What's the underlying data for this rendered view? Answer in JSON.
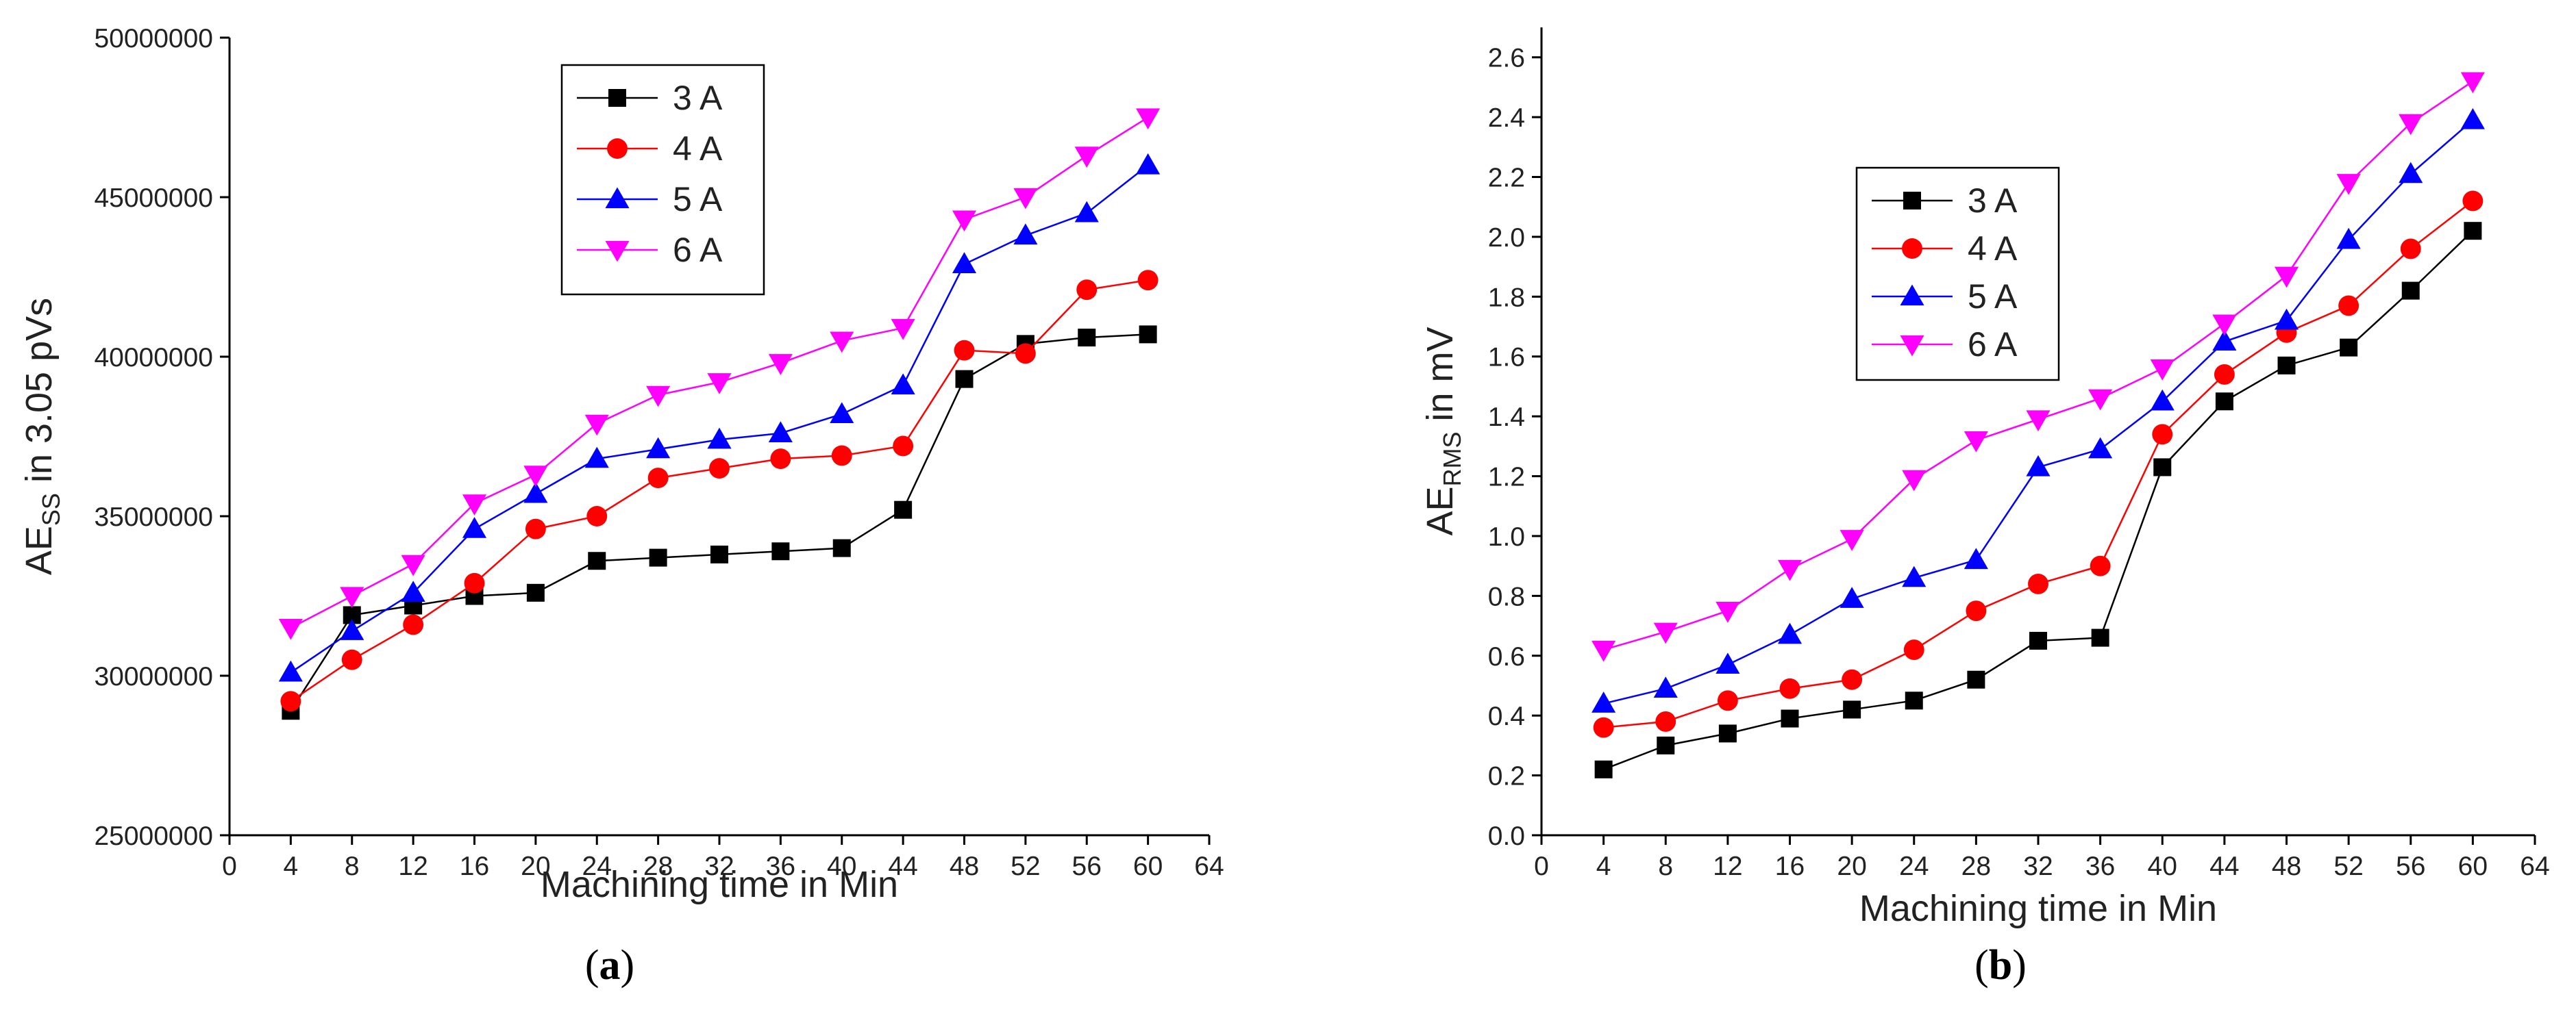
{
  "chart_data": [
    {
      "type": "line",
      "panel": "a",
      "caption_letter": "a",
      "xlabel": "Machining time in Min",
      "ylabel_main": "AE",
      "ylabel_sub": "SS",
      "ylabel_rest": " in 3.05 pVs",
      "xlim": [
        0,
        64
      ],
      "ylim": [
        25000000,
        50000000
      ],
      "xticks": [
        "0",
        "4",
        "8",
        "12",
        "16",
        "20",
        "24",
        "28",
        "32",
        "36",
        "40",
        "44",
        "48",
        "52",
        "56",
        "60",
        "64"
      ],
      "yticks": [
        "25000000",
        "30000000",
        "35000000",
        "40000000",
        "45000000",
        "50000000"
      ],
      "legend_position": "top-center",
      "x": [
        4,
        8,
        12,
        16,
        20,
        24,
        28,
        32,
        36,
        40,
        44,
        48,
        52,
        56,
        60
      ],
      "series": [
        {
          "name": "3 A",
          "color": "#000000",
          "marker": "square",
          "values": [
            28900000,
            31900000,
            32200000,
            32500000,
            32600000,
            33600000,
            33700000,
            33800000,
            33900000,
            34000000,
            35200000,
            39300000,
            40400000,
            40600000,
            40700000
          ]
        },
        {
          "name": "4 A",
          "color": "#ff0000",
          "marker": "circle",
          "values": [
            29200000,
            30500000,
            31600000,
            32900000,
            34600000,
            35000000,
            36200000,
            36500000,
            36800000,
            36900000,
            37200000,
            40200000,
            40100000,
            42100000,
            42400000
          ]
        },
        {
          "name": "5 A",
          "color": "#0000ff",
          "marker": "triangle-up",
          "values": [
            30100000,
            31400000,
            32600000,
            34600000,
            35700000,
            36800000,
            37100000,
            37400000,
            37600000,
            38200000,
            39100000,
            42900000,
            43800000,
            44500000,
            46000000
          ]
        },
        {
          "name": "6 A",
          "color": "#ff00ff",
          "marker": "triangle-down",
          "values": [
            31500000,
            32500000,
            33500000,
            35400000,
            36300000,
            37900000,
            38800000,
            39200000,
            39800000,
            40500000,
            40900000,
            44300000,
            45000000,
            46300000,
            47500000
          ]
        }
      ]
    },
    {
      "type": "line",
      "panel": "b",
      "caption_letter": "b",
      "xlabel": "Machining time in Min",
      "ylabel_main": "AE",
      "ylabel_sub": "RMS",
      "ylabel_rest": " in mV",
      "xlim": [
        0,
        64
      ],
      "ylim": [
        0,
        2.7
      ],
      "xticks": [
        "0",
        "4",
        "8",
        "12",
        "16",
        "20",
        "24",
        "28",
        "32",
        "36",
        "40",
        "44",
        "48",
        "52",
        "56",
        "60",
        "64"
      ],
      "yticks": [
        "0.0",
        "0.2",
        "0.4",
        "0.6",
        "0.8",
        "1.0",
        "1.2",
        "1.4",
        "1.6",
        "1.8",
        "2.0",
        "2.2",
        "2.4",
        "2.6"
      ],
      "legend_position": "upper-left",
      "x": [
        4,
        8,
        12,
        16,
        20,
        24,
        28,
        32,
        36,
        40,
        44,
        48,
        52,
        56,
        60
      ],
      "series": [
        {
          "name": "3 A",
          "color": "#000000",
          "marker": "square",
          "values": [
            0.22,
            0.3,
            0.34,
            0.39,
            0.42,
            0.45,
            0.52,
            0.65,
            0.66,
            1.23,
            1.45,
            1.57,
            1.63,
            1.82,
            2.02
          ]
        },
        {
          "name": "4 A",
          "color": "#ff0000",
          "marker": "circle",
          "values": [
            0.36,
            0.38,
            0.45,
            0.49,
            0.52,
            0.62,
            0.75,
            0.84,
            0.9,
            1.34,
            1.54,
            1.68,
            1.77,
            1.96,
            2.12
          ]
        },
        {
          "name": "5 A",
          "color": "#0000ff",
          "marker": "triangle-up",
          "values": [
            0.44,
            0.49,
            0.57,
            0.67,
            0.79,
            0.86,
            0.92,
            1.23,
            1.29,
            1.45,
            1.65,
            1.72,
            1.99,
            2.21,
            2.39
          ]
        },
        {
          "name": "6 A",
          "color": "#ff00ff",
          "marker": "triangle-down",
          "values": [
            0.62,
            0.68,
            0.75,
            0.89,
            0.99,
            1.19,
            1.32,
            1.39,
            1.46,
            1.56,
            1.71,
            1.87,
            2.18,
            2.38,
            2.52
          ]
        }
      ]
    }
  ]
}
